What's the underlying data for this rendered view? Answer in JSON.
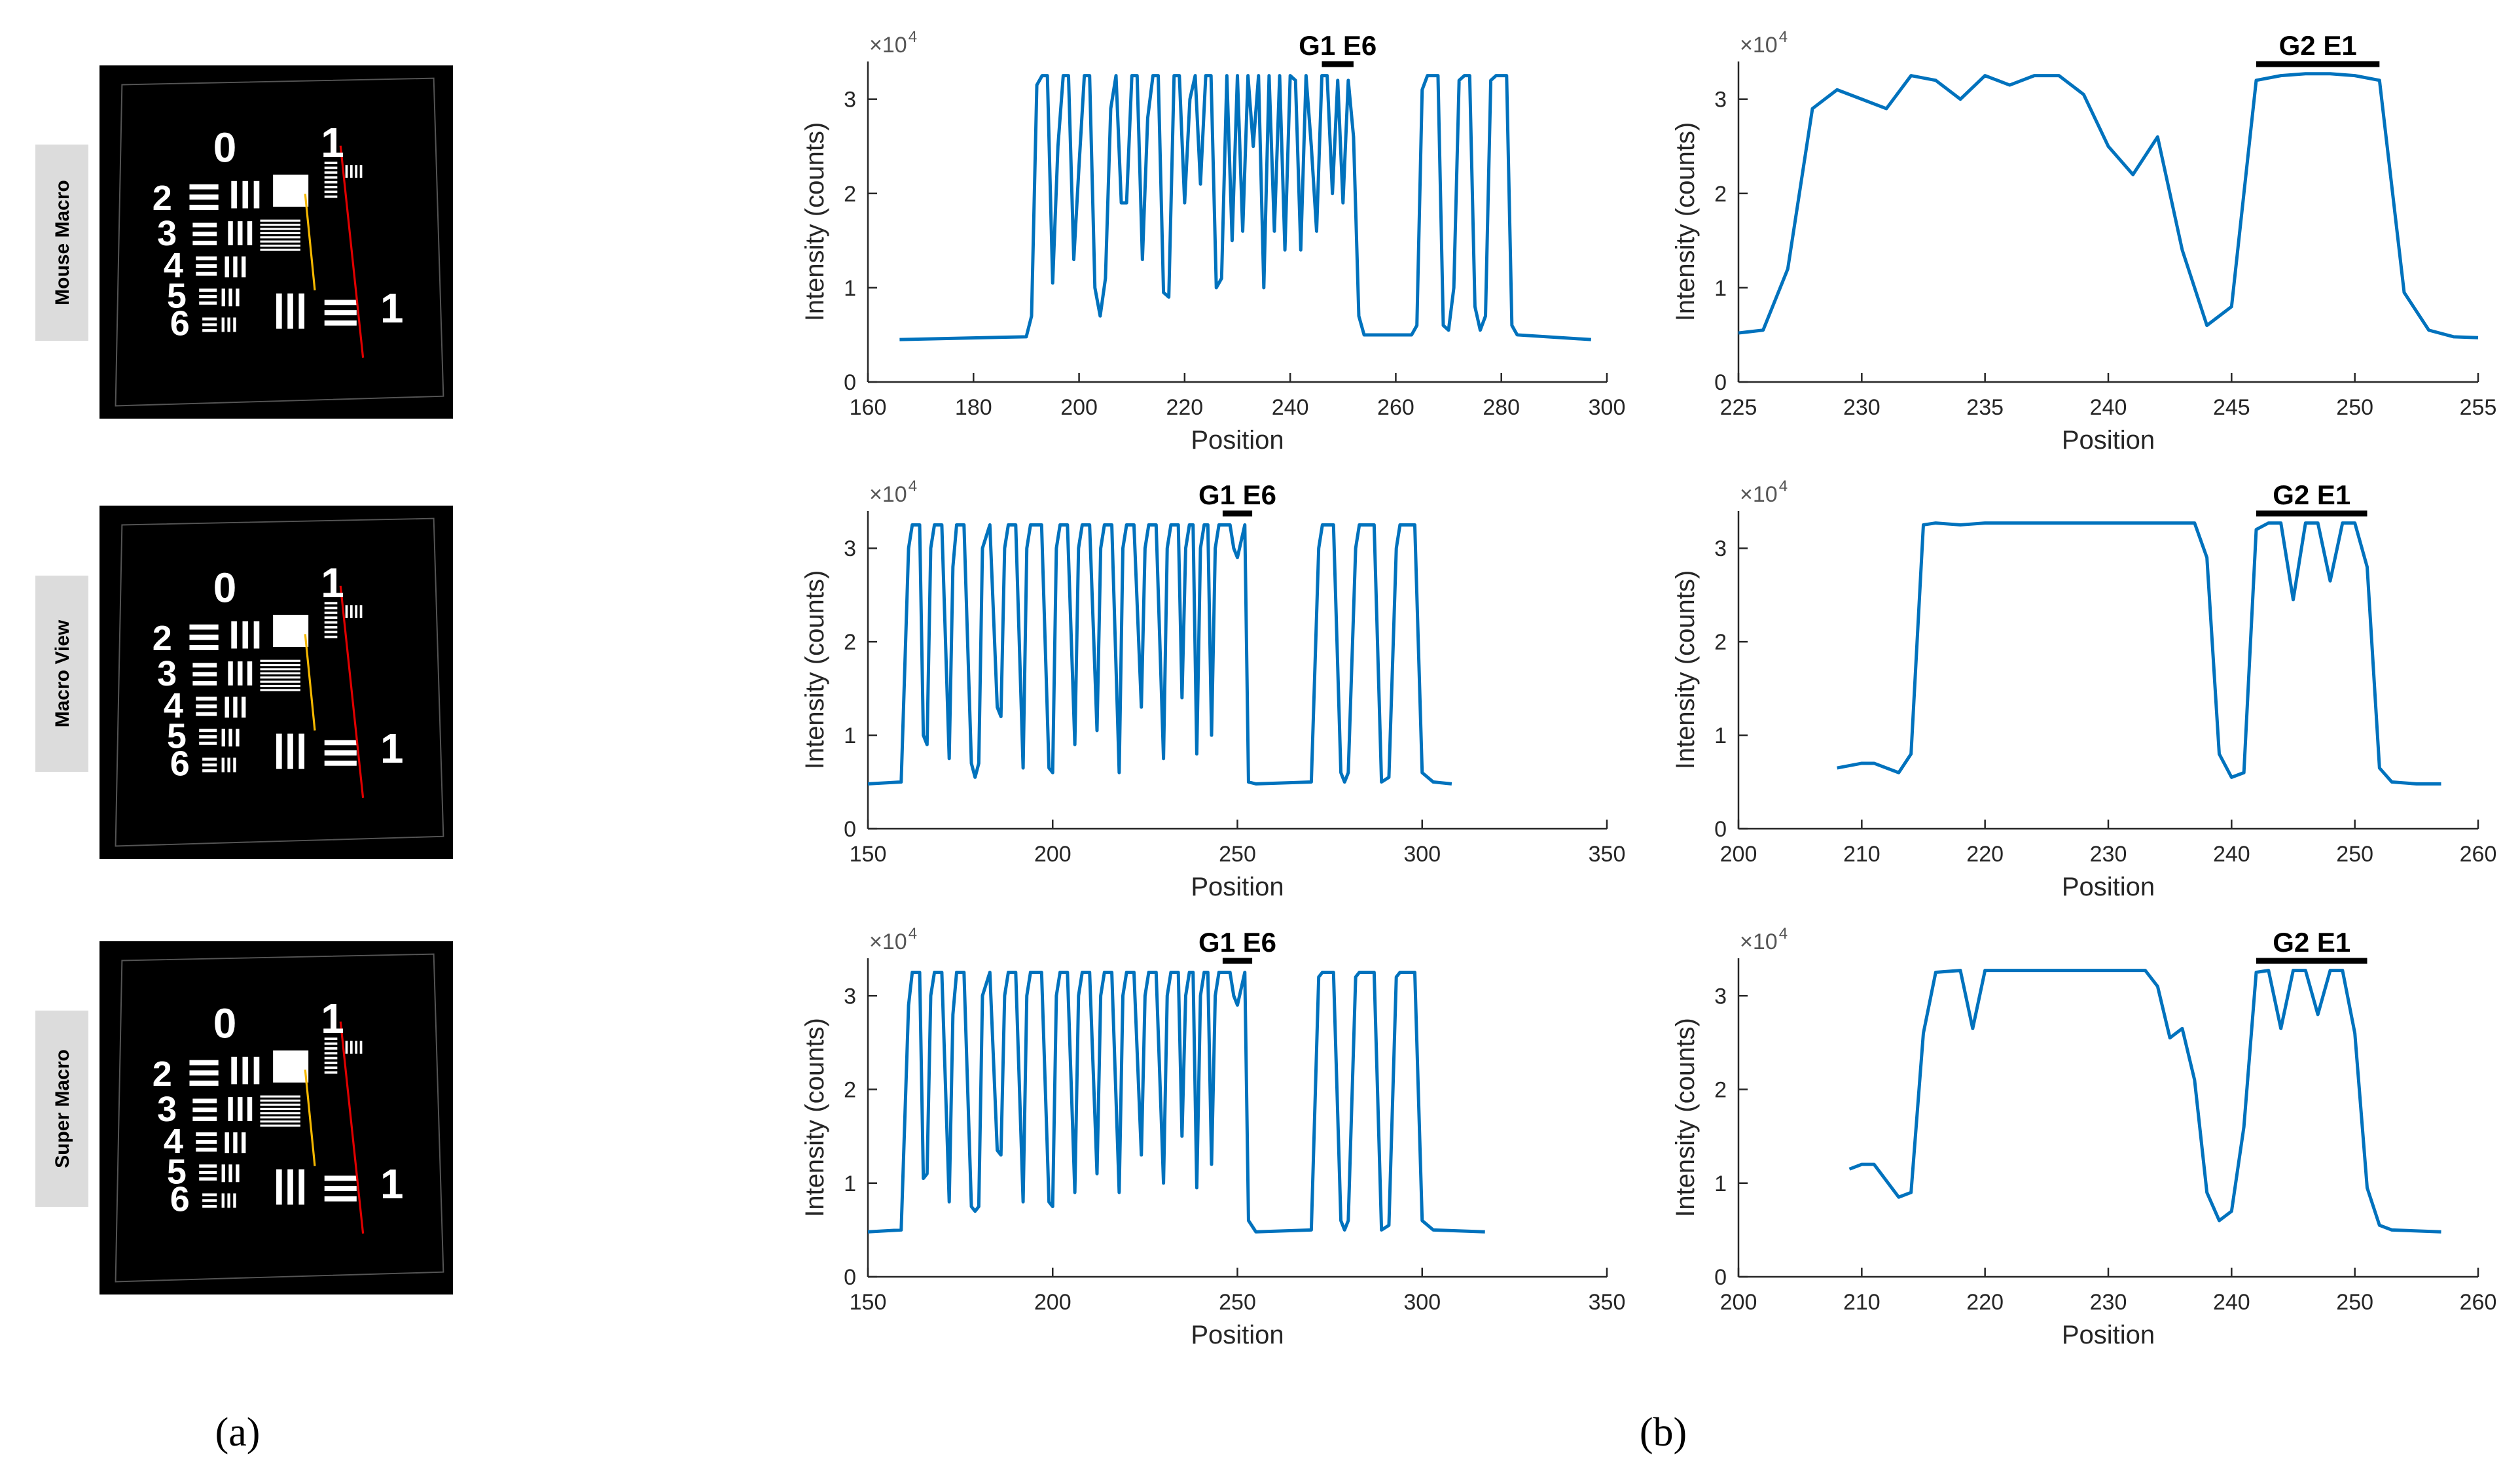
{
  "chart_data": [
    {
      "type": "line",
      "x_label": "Position",
      "y_label": "Intensity (counts)",
      "y_exponent_base": "×10",
      "y_exponent": "4",
      "annotation": {
        "text": "G1 E6",
        "x_start": 246,
        "x_end": 252
      },
      "xlim": [
        160,
        300
      ],
      "xticks": [
        160,
        180,
        200,
        220,
        240,
        260,
        280,
        300
      ],
      "ylim": [
        0,
        3.4
      ],
      "yticks": [
        0,
        1,
        2,
        3
      ],
      "x": [
        166,
        190,
        191,
        192,
        193,
        194,
        195,
        196,
        197,
        198,
        199,
        200,
        201,
        202,
        203,
        204,
        205,
        206,
        207,
        208,
        209,
        210,
        211,
        212,
        213,
        214,
        215,
        216,
        217,
        218,
        219,
        220,
        221,
        222,
        223,
        224,
        225,
        226,
        227,
        228,
        229,
        230,
        231,
        232,
        233,
        234,
        235,
        236,
        237,
        238,
        239,
        240,
        241,
        242,
        243,
        244,
        245,
        246,
        247,
        248,
        249,
        250,
        251,
        252,
        253,
        254,
        263,
        264,
        265,
        266,
        267,
        268,
        269,
        270,
        271,
        272,
        273,
        274,
        275,
        276,
        277,
        278,
        279,
        280,
        281,
        282,
        283,
        297
      ],
      "series": [
        {
          "color": "#0072bd",
          "values": [
            0.45,
            0.48,
            0.7,
            3.15,
            3.25,
            3.25,
            1.05,
            2.5,
            3.25,
            3.25,
            1.3,
            2.3,
            3.25,
            3.25,
            1.0,
            0.7,
            1.1,
            2.9,
            3.25,
            1.9,
            1.9,
            3.25,
            3.25,
            1.3,
            2.8,
            3.25,
            3.25,
            0.95,
            0.9,
            3.25,
            3.25,
            1.9,
            3.0,
            3.25,
            2.1,
            3.25,
            3.25,
            1.0,
            1.1,
            3.25,
            1.5,
            3.25,
            1.6,
            3.25,
            2.5,
            3.25,
            1.0,
            3.25,
            1.6,
            3.25,
            1.4,
            3.25,
            3.2,
            1.4,
            3.25,
            2.5,
            1.6,
            3.25,
            3.25,
            2.0,
            3.2,
            1.9,
            3.2,
            2.6,
            0.7,
            0.5,
            0.5,
            0.6,
            3.1,
            3.25,
            3.25,
            3.25,
            0.6,
            0.55,
            1.0,
            3.2,
            3.25,
            3.25,
            0.8,
            0.55,
            0.7,
            3.2,
            3.25,
            3.25,
            3.25,
            0.6,
            0.5,
            0.45
          ]
        }
      ]
    },
    {
      "type": "line",
      "x_label": "Position",
      "y_label": "Intensity (counts)",
      "y_exponent_base": "×10",
      "y_exponent": "4",
      "annotation": {
        "text": "G2 E1",
        "x_start": 246,
        "x_end": 251
      },
      "xlim": [
        225,
        255
      ],
      "xticks": [
        225,
        230,
        235,
        240,
        245,
        250,
        255
      ],
      "ylim": [
        0,
        3.4
      ],
      "yticks": [
        0,
        1,
        2,
        3
      ],
      "x": [
        225,
        226,
        227,
        228,
        229,
        230,
        231,
        232,
        233,
        234,
        235,
        236,
        237,
        238,
        239,
        240,
        241,
        242,
        243,
        244,
        245,
        246,
        247,
        248,
        249,
        250,
        251,
        252,
        253,
        254,
        255
      ],
      "series": [
        {
          "color": "#0072bd",
          "values": [
            0.52,
            0.55,
            1.2,
            2.9,
            3.1,
            3.0,
            2.9,
            3.25,
            3.2,
            3.0,
            3.25,
            3.15,
            3.25,
            3.25,
            3.05,
            2.5,
            2.2,
            2.6,
            1.4,
            0.6,
            0.8,
            3.2,
            3.25,
            3.27,
            3.27,
            3.25,
            3.2,
            0.95,
            0.55,
            0.48,
            0.47
          ]
        }
      ]
    },
    {
      "type": "line",
      "x_label": "Position",
      "y_label": "Intensity (counts)",
      "y_exponent_base": "×10",
      "y_exponent": "4",
      "annotation": {
        "text": "G1 E6",
        "x_start": 246,
        "x_end": 254
      },
      "xlim": [
        150,
        350
      ],
      "xticks": [
        150,
        200,
        250,
        300,
        350
      ],
      "ylim": [
        0,
        3.4
      ],
      "yticks": [
        0,
        1,
        2,
        3
      ],
      "x": [
        150,
        159,
        161,
        162,
        164,
        165,
        166,
        167,
        168,
        170,
        172,
        173,
        174,
        176,
        178,
        179,
        180,
        181,
        183,
        185,
        186,
        187,
        188,
        190,
        192,
        193,
        194,
        197,
        199,
        200,
        201,
        202,
        204,
        206,
        207,
        208,
        210,
        212,
        213,
        214,
        216,
        218,
        219,
        220,
        222,
        224,
        225,
        226,
        228,
        230,
        231,
        232,
        234,
        235,
        236,
        237,
        238,
        239,
        240,
        241,
        242,
        243,
        244,
        245,
        247,
        248,
        249,
        250,
        252,
        253,
        255,
        270,
        272,
        273,
        276,
        278,
        279,
        280,
        282,
        283,
        287,
        289,
        291,
        293,
        294,
        298,
        300,
        303,
        308
      ],
      "series": [
        {
          "color": "#0072bd",
          "values": [
            0.48,
            0.5,
            3.0,
            3.25,
            3.25,
            1.0,
            0.9,
            3.0,
            3.25,
            3.25,
            0.75,
            2.8,
            3.25,
            3.25,
            0.7,
            0.55,
            0.7,
            3.0,
            3.25,
            1.3,
            1.2,
            3.0,
            3.25,
            3.25,
            0.65,
            3.0,
            3.25,
            3.25,
            0.65,
            0.6,
            3.0,
            3.25,
            3.25,
            0.9,
            3.0,
            3.25,
            3.25,
            1.05,
            3.0,
            3.25,
            3.25,
            0.6,
            3.0,
            3.25,
            3.25,
            1.3,
            3.0,
            3.25,
            3.25,
            0.75,
            3.0,
            3.25,
            3.25,
            1.4,
            3.0,
            3.25,
            3.25,
            0.8,
            3.0,
            3.25,
            3.25,
            1.0,
            3.0,
            3.25,
            3.25,
            3.25,
            3.0,
            2.9,
            3.25,
            0.5,
            0.48,
            0.5,
            3.0,
            3.25,
            3.25,
            0.6,
            0.5,
            0.6,
            3.0,
            3.25,
            3.25,
            0.5,
            0.55,
            3.0,
            3.25,
            3.25,
            0.6,
            0.5,
            0.48
          ]
        }
      ]
    },
    {
      "type": "line",
      "x_label": "Position",
      "y_label": "Intensity (counts)",
      "y_exponent_base": "×10",
      "y_exponent": "4",
      "annotation": {
        "text": "G2 E1",
        "x_start": 242,
        "x_end": 251
      },
      "xlim": [
        200,
        260
      ],
      "xticks": [
        200,
        210,
        220,
        230,
        240,
        250,
        260
      ],
      "ylim": [
        0,
        3.4
      ],
      "yticks": [
        0,
        1,
        2,
        3
      ],
      "x": [
        208,
        210,
        211,
        213,
        214,
        215,
        216,
        218,
        220,
        225,
        230,
        237,
        238,
        239,
        240,
        241,
        242,
        243,
        244,
        245,
        246,
        247,
        248,
        249,
        250,
        251,
        252,
        253,
        255,
        257
      ],
      "series": [
        {
          "color": "#0072bd",
          "values": [
            0.65,
            0.7,
            0.7,
            0.6,
            0.8,
            3.25,
            3.27,
            3.25,
            3.27,
            3.27,
            3.27,
            3.27,
            2.9,
            0.8,
            0.55,
            0.6,
            3.2,
            3.27,
            3.27,
            2.45,
            3.27,
            3.27,
            2.65,
            3.27,
            3.27,
            2.8,
            0.65,
            0.5,
            0.48,
            0.48
          ]
        }
      ]
    },
    {
      "type": "line",
      "x_label": "Position",
      "y_label": "Intensity (counts)",
      "y_exponent_base": "×10",
      "y_exponent": "4",
      "annotation": {
        "text": "G1 E6",
        "x_start": 246,
        "x_end": 254
      },
      "xlim": [
        150,
        350
      ],
      "xticks": [
        150,
        200,
        250,
        300,
        350
      ],
      "ylim": [
        0,
        3.4
      ],
      "yticks": [
        0,
        1,
        2,
        3
      ],
      "x": [
        150,
        159,
        161,
        162,
        164,
        165,
        166,
        167,
        168,
        170,
        172,
        173,
        174,
        176,
        178,
        179,
        180,
        181,
        183,
        185,
        186,
        187,
        188,
        190,
        192,
        193,
        194,
        197,
        199,
        200,
        201,
        202,
        204,
        206,
        207,
        208,
        210,
        212,
        213,
        214,
        216,
        218,
        219,
        220,
        222,
        224,
        225,
        226,
        228,
        230,
        231,
        232,
        234,
        235,
        236,
        237,
        238,
        239,
        240,
        241,
        242,
        243,
        244,
        245,
        247,
        248,
        249,
        250,
        252,
        253,
        255,
        270,
        272,
        273,
        276,
        278,
        279,
        280,
        282,
        283,
        287,
        289,
        291,
        293,
        294,
        298,
        300,
        303,
        317
      ],
      "series": [
        {
          "color": "#0072bd",
          "values": [
            0.48,
            0.5,
            2.9,
            3.25,
            3.25,
            1.05,
            1.1,
            3.0,
            3.25,
            3.25,
            0.8,
            2.8,
            3.25,
            3.25,
            0.75,
            0.7,
            0.75,
            3.0,
            3.25,
            1.35,
            1.3,
            3.0,
            3.25,
            3.25,
            0.8,
            3.0,
            3.25,
            3.25,
            0.8,
            0.75,
            3.0,
            3.25,
            3.25,
            0.9,
            3.0,
            3.25,
            3.25,
            1.1,
            3.0,
            3.25,
            3.25,
            0.9,
            3.0,
            3.25,
            3.25,
            1.3,
            3.0,
            3.25,
            3.25,
            1.0,
            3.0,
            3.25,
            3.25,
            1.5,
            3.0,
            3.25,
            3.25,
            0.95,
            3.0,
            3.25,
            3.25,
            1.2,
            3.0,
            3.25,
            3.25,
            3.25,
            3.0,
            2.9,
            3.25,
            0.6,
            0.48,
            0.5,
            3.2,
            3.25,
            3.25,
            0.6,
            0.5,
            0.6,
            3.2,
            3.25,
            3.25,
            0.5,
            0.55,
            3.2,
            3.25,
            3.25,
            0.6,
            0.5,
            0.48
          ]
        }
      ]
    },
    {
      "type": "line",
      "x_label": "Position",
      "y_label": "Intensity (counts)",
      "y_exponent_base": "×10",
      "y_exponent": "4",
      "annotation": {
        "text": "G2 E1",
        "x_start": 242,
        "x_end": 251
      },
      "xlim": [
        200,
        260
      ],
      "xticks": [
        200,
        210,
        220,
        230,
        240,
        250,
        260
      ],
      "ylim": [
        0,
        3.4
      ],
      "yticks": [
        0,
        1,
        2,
        3
      ],
      "x": [
        209,
        210,
        211,
        213,
        214,
        215,
        216,
        218,
        219,
        220,
        225,
        230,
        233,
        234,
        235,
        236,
        237,
        238,
        239,
        240,
        241,
        242,
        243,
        244,
        245,
        246,
        247,
        248,
        249,
        250,
        251,
        252,
        253,
        257
      ],
      "series": [
        {
          "color": "#0072bd",
          "values": [
            1.15,
            1.2,
            1.2,
            0.85,
            0.9,
            2.6,
            3.25,
            3.27,
            2.65,
            3.27,
            3.27,
            3.27,
            3.27,
            3.1,
            2.55,
            2.65,
            2.1,
            0.9,
            0.6,
            0.7,
            1.6,
            3.25,
            3.27,
            2.65,
            3.27,
            3.27,
            2.8,
            3.27,
            3.27,
            2.6,
            0.95,
            0.55,
            0.5,
            0.48
          ]
        }
      ]
    }
  ],
  "panels": [
    {
      "label": "Mouse Macro",
      "digits": [
        "0",
        "1",
        "2",
        "3",
        "4",
        "5",
        "6",
        "1"
      ]
    },
    {
      "label": "Macro View",
      "digits": [
        "0",
        "1",
        "2",
        "3",
        "4",
        "5",
        "6",
        "1"
      ]
    },
    {
      "label": "Super Macro",
      "digits": [
        "0",
        "1",
        "2",
        "3",
        "4",
        "5",
        "6",
        "1"
      ]
    }
  ],
  "figure_labels": [
    "(a)",
    "(b)"
  ]
}
